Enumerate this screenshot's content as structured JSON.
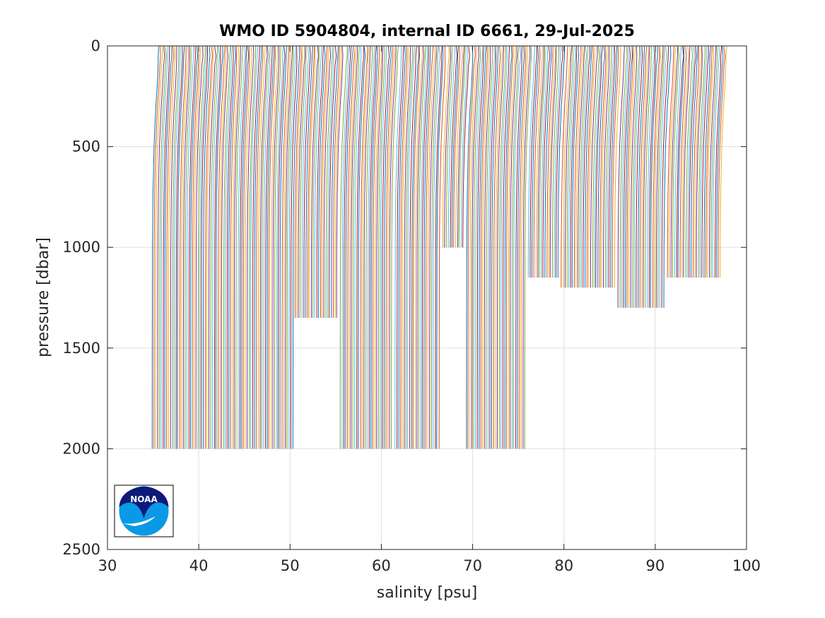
{
  "chart_data": {
    "type": "line",
    "title": "WMO ID 5904804, internal ID 6661, 29-Jul-2025",
    "xlabel": "salinity [psu]",
    "ylabel": "pressure [dbar]",
    "xlim": [
      30,
      100
    ],
    "ylim": [
      0,
      2500
    ],
    "y_reversed": true,
    "xticks": [
      30,
      40,
      50,
      60,
      70,
      80,
      90,
      100
    ],
    "yticks": [
      0,
      500,
      1000,
      1500,
      2000,
      2500
    ],
    "grid": true,
    "legend": "none",
    "waterfall_offset_psu_per_profile": 0.2,
    "color_cycle": [
      "#0072BD",
      "#D95319",
      "#EDB120",
      "#7E2F8E",
      "#77AC30",
      "#4DBEEE",
      "#A2142F"
    ],
    "typical_profile": {
      "pressure": [
        0,
        50,
        100,
        200,
        300,
        500,
        750,
        1000,
        1500,
        2000
      ],
      "salinity": [
        35.6,
        35.62,
        35.55,
        35.45,
        35.3,
        35.1,
        34.98,
        34.93,
        34.91,
        34.9
      ]
    },
    "profile_groups": [
      {
        "first_offset_psu": 0.0,
        "count": 78,
        "max_pressure": 2000
      },
      {
        "first_offset_psu": 15.6,
        "count": 24,
        "max_pressure": 1350
      },
      {
        "first_offset_psu": 20.6,
        "count": 29,
        "max_pressure": 2000
      },
      {
        "first_offset_psu": 26.6,
        "count": 25,
        "max_pressure": 2000
      },
      {
        "first_offset_psu": 31.8,
        "count": 12,
        "max_pressure": 1000
      },
      {
        "first_offset_psu": 34.4,
        "count": 33,
        "max_pressure": 2000
      },
      {
        "first_offset_psu": 41.2,
        "count": 17,
        "max_pressure": 1150
      },
      {
        "first_offset_psu": 44.8,
        "count": 30,
        "max_pressure": 1200
      },
      {
        "first_offset_psu": 51.0,
        "count": 26,
        "max_pressure": 1300
      },
      {
        "first_offset_psu": 56.4,
        "count": 30,
        "max_pressure": 1150
      }
    ],
    "logo": "noaa-logo"
  }
}
